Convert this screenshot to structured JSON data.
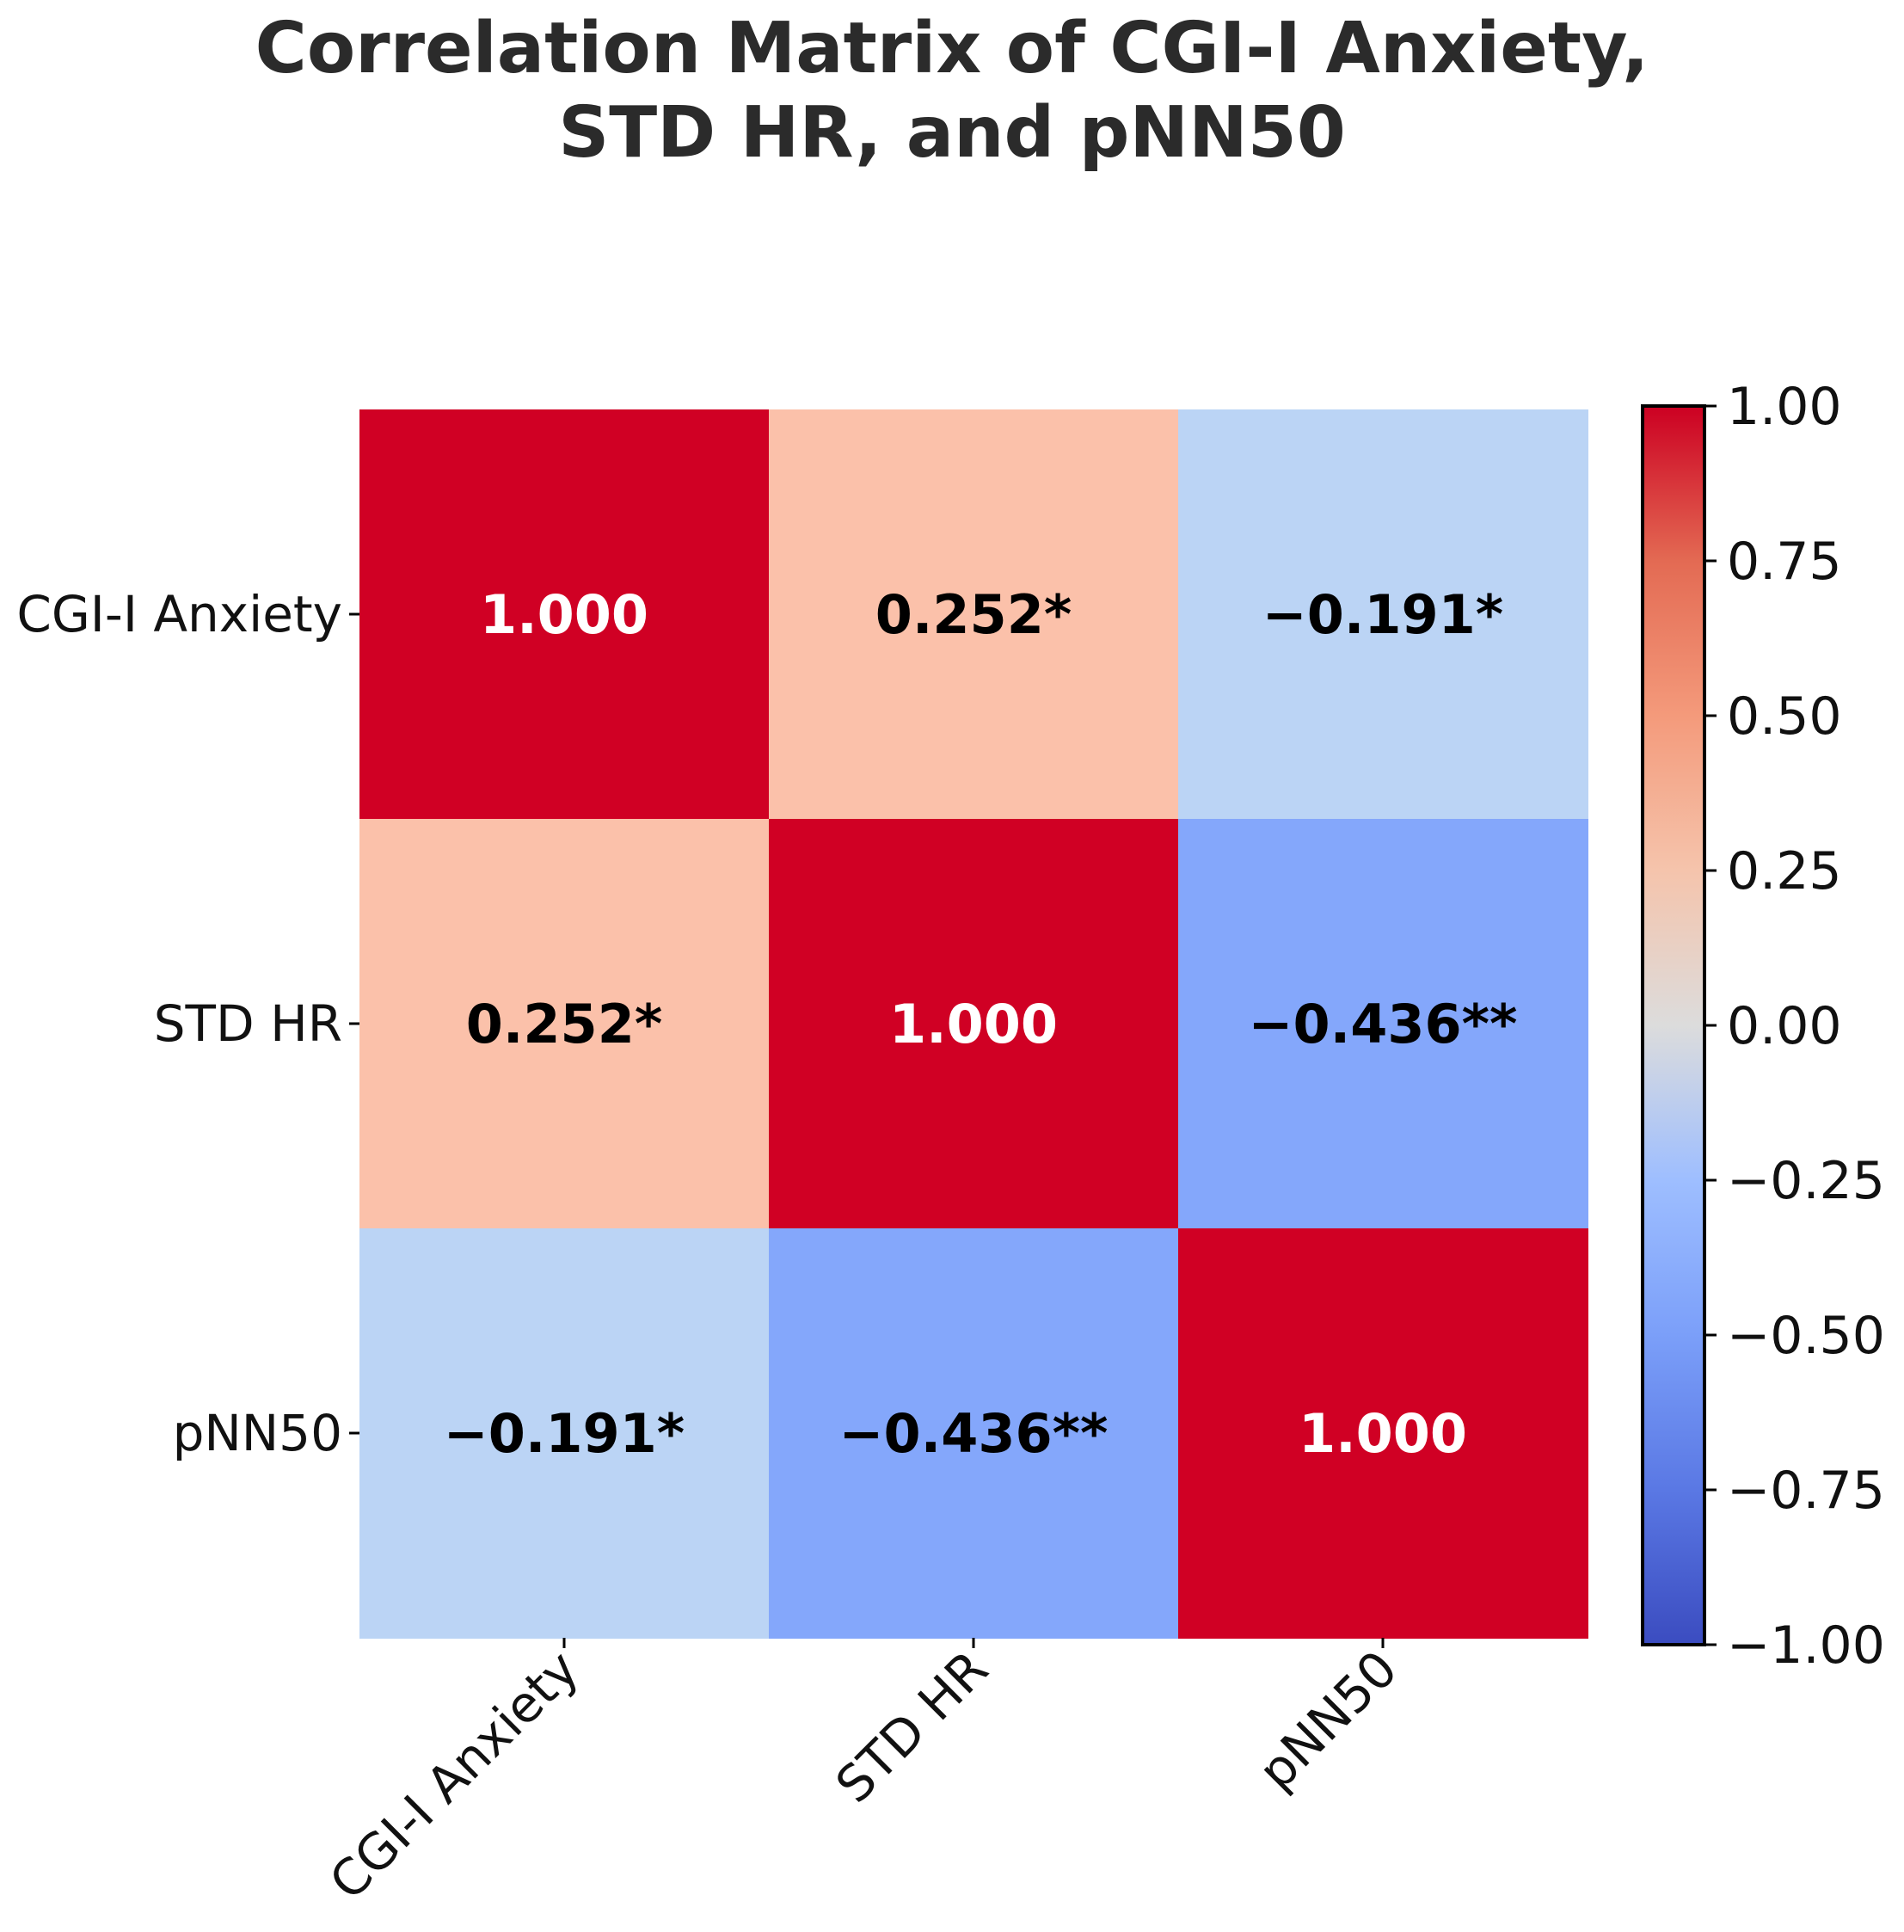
{
  "chart_data": {
    "type": "heatmap",
    "title_lines": [
      "Correlation Matrix of CGI-I Anxiety,",
      "STD HR, and pNN50"
    ],
    "rows": [
      "CGI-I Anxiety",
      "STD HR",
      "pNN50"
    ],
    "columns": [
      "CGI-I Anxiety",
      "STD HR",
      "pNN50"
    ],
    "values": [
      [
        1.0,
        0.252,
        -0.191
      ],
      [
        0.252,
        1.0,
        -0.436
      ],
      [
        -0.191,
        -0.436,
        1.0
      ]
    ],
    "cell_labels": [
      [
        "1.000",
        "0.252*",
        "−0.191*"
      ],
      [
        "0.252*",
        "1.000",
        "−0.436**"
      ],
      [
        "−0.191*",
        "−0.436**",
        "1.000"
      ]
    ],
    "colormap": "coolwarm",
    "vmin": -1.0,
    "vmax": 1.0,
    "colorbar": {
      "ticks": [
        1.0,
        0.75,
        0.5,
        0.25,
        0.0,
        -0.25,
        -0.5,
        -0.75,
        -1.0
      ],
      "tick_labels": [
        "1.00",
        "0.75",
        "0.50",
        "0.25",
        "0.00",
        "−0.25",
        "−0.50",
        "−0.75",
        "−1.00"
      ]
    },
    "colors": {
      "high": "#d00024",
      "low": "#3a4cc0",
      "mid": "#dddddd",
      "text_dark": "#000000",
      "text_light": "#ffffff"
    }
  }
}
